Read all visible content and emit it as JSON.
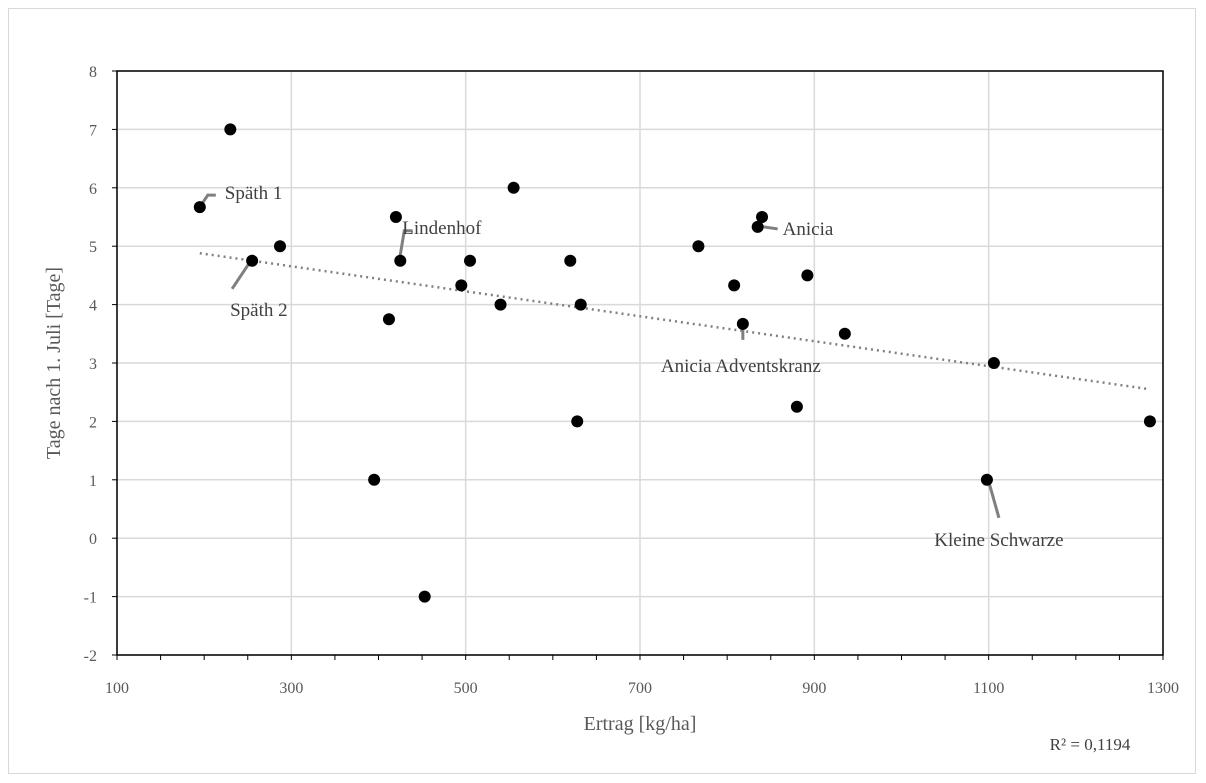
{
  "chart_data": {
    "type": "scatter",
    "xlabel": "Ertrag [kg/ha]",
    "ylabel": "Tage nach 1. Juli [Tage]",
    "xlim": [
      100,
      1300
    ],
    "ylim": [
      -2,
      8
    ],
    "xticks": [
      100,
      300,
      500,
      700,
      900,
      1100,
      1300
    ],
    "yticks": [
      -2,
      -1,
      0,
      1,
      2,
      3,
      4,
      5,
      6,
      7,
      8
    ],
    "grid": true,
    "marker_color": "#000000",
    "trendline_color": "#808080",
    "points": [
      {
        "x": 195,
        "y": 5.67
      },
      {
        "x": 230,
        "y": 7.0
      },
      {
        "x": 255,
        "y": 4.75
      },
      {
        "x": 287,
        "y": 5.0
      },
      {
        "x": 395,
        "y": 1.0
      },
      {
        "x": 412,
        "y": 3.75
      },
      {
        "x": 420,
        "y": 5.5
      },
      {
        "x": 425,
        "y": 4.75
      },
      {
        "x": 453,
        "y": -1.0
      },
      {
        "x": 495,
        "y": 4.33
      },
      {
        "x": 505,
        "y": 4.75
      },
      {
        "x": 540,
        "y": 4.0
      },
      {
        "x": 555,
        "y": 6.0
      },
      {
        "x": 620,
        "y": 4.75
      },
      {
        "x": 628,
        "y": 2.0
      },
      {
        "x": 632,
        "y": 4.0
      },
      {
        "x": 767,
        "y": 5.0
      },
      {
        "x": 808,
        "y": 4.33
      },
      {
        "x": 818,
        "y": 3.67
      },
      {
        "x": 835,
        "y": 5.33
      },
      {
        "x": 840,
        "y": 5.5
      },
      {
        "x": 880,
        "y": 2.25
      },
      {
        "x": 892,
        "y": 4.5
      },
      {
        "x": 935,
        "y": 3.5
      },
      {
        "x": 1098,
        "y": 1.0
      },
      {
        "x": 1106,
        "y": 3.0
      },
      {
        "x": 1285,
        "y": 2.0
      }
    ],
    "trendline": {
      "x1": 195,
      "y1": 4.88,
      "x2": 1285,
      "y2": 2.55
    },
    "annotations": [
      {
        "text": "Späth 1",
        "x": 195,
        "y": 5.67
      },
      {
        "text": "Späth 2",
        "x": 255,
        "y": 4.75
      },
      {
        "text": "Lindenhof",
        "x": 425,
        "y": 4.75
      },
      {
        "text": "Anicia",
        "x": 835,
        "y": 5.33
      },
      {
        "text": "Anicia  Adventskranz",
        "x": 818,
        "y": 3.67
      },
      {
        "text": "Kleine  Schwarze",
        "x": 1098,
        "y": 1.0
      }
    ],
    "r2_label": "R² = 0,1194"
  }
}
